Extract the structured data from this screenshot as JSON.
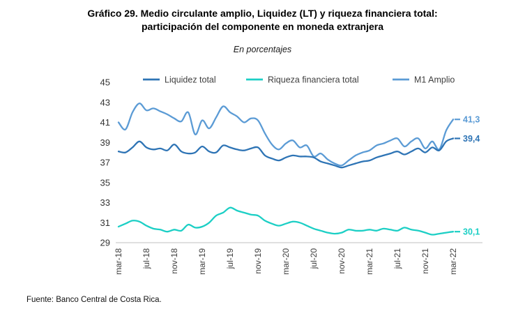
{
  "title_line1": "Gráfico 29. Medio circulante amplio, Liquidez (LT) y riqueza financiera total:",
  "title_line2": "participación del componente en moneda extranjera",
  "subtitle": "En porcentajes",
  "source": "Fuente: Banco Central de Costa Rica.",
  "chart_data": {
    "type": "line",
    "title": "Medio circulante amplio, Liquidez (LT) y riqueza financiera total: participación del componente en moneda extranjera",
    "xlabel": "",
    "ylabel": "En porcentajes",
    "ylim": [
      29,
      45
    ],
    "yticks": [
      29,
      31,
      33,
      35,
      37,
      39,
      41,
      43,
      45
    ],
    "grid": false,
    "legend_position": "top",
    "x_tick_step": 4,
    "x": [
      "mar-18",
      "abr-18",
      "may-18",
      "jun-18",
      "jul-18",
      "ago-18",
      "sep-18",
      "oct-18",
      "nov-18",
      "dic-18",
      "ene-19",
      "feb-19",
      "mar-19",
      "abr-19",
      "may-19",
      "jun-19",
      "jul-19",
      "ago-19",
      "sep-19",
      "oct-19",
      "nov-19",
      "dic-19",
      "ene-20",
      "feb-20",
      "mar-20",
      "abr-20",
      "may-20",
      "jun-20",
      "jul-20",
      "ago-20",
      "sep-20",
      "oct-20",
      "nov-20",
      "dic-20",
      "ene-21",
      "feb-21",
      "mar-21",
      "abr-21",
      "may-21",
      "jun-21",
      "jul-21",
      "ago-21",
      "sep-21",
      "oct-21",
      "nov-21",
      "dic-21",
      "ene-22",
      "feb-22",
      "mar-22"
    ],
    "x_tick_labels": [
      "mar-18",
      "jul-18",
      "nov-18",
      "mar-19",
      "jul-19",
      "nov-19",
      "mar-20",
      "jul-20",
      "nov-20",
      "mar-21",
      "jul-21",
      "nov-21",
      "mar-22"
    ],
    "series": [
      {
        "name": "Liquidez total",
        "color": "#2e74b5",
        "end_label": "39,4",
        "values": [
          38.1,
          38.0,
          38.5,
          39.1,
          38.5,
          38.3,
          38.4,
          38.2,
          38.8,
          38.1,
          37.9,
          38.0,
          38.6,
          38.1,
          38.0,
          38.7,
          38.5,
          38.3,
          38.2,
          38.4,
          38.5,
          37.7,
          37.4,
          37.2,
          37.5,
          37.7,
          37.6,
          37.6,
          37.5,
          37.1,
          36.9,
          36.7,
          36.5,
          36.7,
          36.9,
          37.1,
          37.2,
          37.5,
          37.7,
          37.9,
          38.1,
          37.8,
          38.1,
          38.4,
          38.0,
          38.5,
          38.2,
          39.1,
          39.4
        ]
      },
      {
        "name": "Riqueza financiera total",
        "color": "#1ccfc5",
        "end_label": "30,1",
        "values": [
          30.6,
          30.9,
          31.2,
          31.1,
          30.7,
          30.4,
          30.3,
          30.1,
          30.3,
          30.2,
          30.8,
          30.5,
          30.6,
          31.0,
          31.7,
          32.0,
          32.5,
          32.2,
          32.0,
          31.8,
          31.7,
          31.2,
          30.9,
          30.7,
          30.9,
          31.1,
          31.0,
          30.7,
          30.4,
          30.2,
          30.0,
          29.9,
          30.0,
          30.3,
          30.2,
          30.2,
          30.3,
          30.2,
          30.4,
          30.3,
          30.2,
          30.5,
          30.3,
          30.2,
          30.0,
          29.8,
          29.9,
          30.0,
          30.1
        ]
      },
      {
        "name": "M1 Amplio",
        "color": "#5b9bd5",
        "end_label": "41,3",
        "values": [
          41.0,
          40.3,
          42.0,
          42.9,
          42.2,
          42.4,
          42.1,
          41.8,
          41.4,
          41.1,
          42.0,
          39.8,
          41.2,
          40.4,
          41.5,
          42.6,
          42.0,
          41.6,
          41.0,
          41.4,
          41.2,
          39.9,
          38.8,
          38.3,
          38.9,
          39.2,
          38.5,
          38.7,
          37.6,
          37.9,
          37.3,
          36.9,
          36.7,
          37.2,
          37.7,
          38.0,
          38.2,
          38.7,
          38.9,
          39.2,
          39.4,
          38.6,
          39.1,
          39.4,
          38.4,
          39.1,
          38.3,
          40.2,
          41.3
        ]
      }
    ]
  }
}
